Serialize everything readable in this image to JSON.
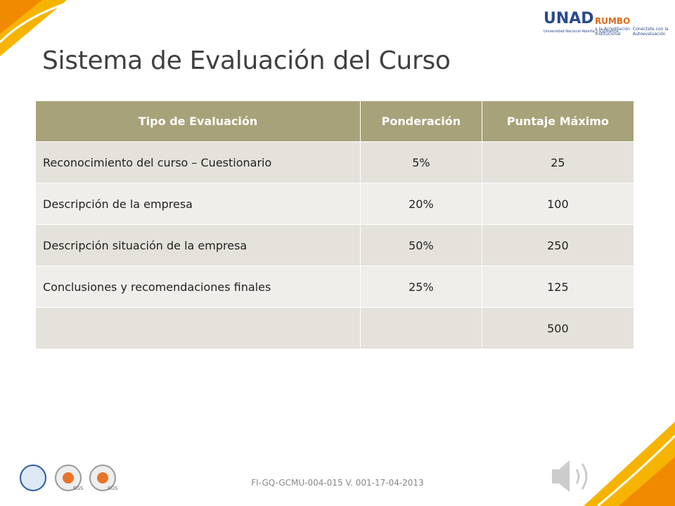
{
  "header": {
    "title": "Sistema de Evaluación del Curso",
    "logo_unad": {
      "name": "UNAD",
      "subtitle": "Universidad Nacional Abierta y a Distancia"
    },
    "logo_rumbo": {
      "name": "RUMBO",
      "line1": "a la Acreditación",
      "line2": "Institucional",
      "tagline1": "Conéctate con la",
      "tagline2": "Autoevaluación"
    }
  },
  "table": {
    "columns": [
      "Tipo de Evaluación",
      "Ponderación",
      "Puntaje Máximo"
    ],
    "rows": [
      [
        "Reconocimiento del curso – Cuestionario",
        "5%",
        "25"
      ],
      [
        "Descripción de la empresa",
        "20%",
        "100"
      ],
      [
        "Descripción situación de la empresa",
        "50%",
        "250"
      ],
      [
        "Conclusiones y recomendaciones finales",
        "25%",
        "125"
      ],
      [
        null,
        null,
        "500"
      ]
    ]
  },
  "footer": {
    "code": "FI-GQ-GCMU-004-015  V. 001-17-04-2013",
    "badges": [
      "SGS",
      "SGS"
    ]
  }
}
